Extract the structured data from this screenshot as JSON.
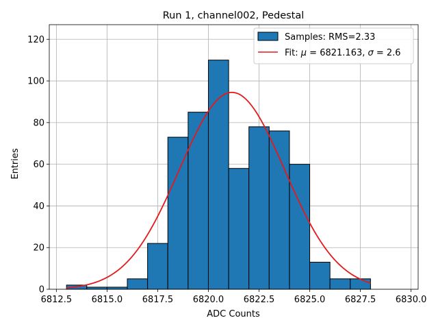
{
  "chart_data": {
    "type": "histogram",
    "title": "Run 1, channel002, Pedestal",
    "xlabel": "ADC Counts",
    "ylabel": "Entries",
    "xlim": [
      6812.15,
      6830.35
    ],
    "ylim": [
      0,
      127
    ],
    "x_ticks": [
      6812.5,
      6815.0,
      6817.5,
      6820.0,
      6822.5,
      6825.0,
      6827.5,
      6830.0
    ],
    "x_tick_labels": [
      "6812.5",
      "6815.0",
      "6817.5",
      "6820.0",
      "6822.5",
      "6825.0",
      "6827.5",
      "6830.0"
    ],
    "y_ticks": [
      0,
      20,
      40,
      60,
      80,
      100,
      120
    ],
    "y_tick_labels": [
      "0",
      "20",
      "40",
      "60",
      "80",
      "100",
      "120"
    ],
    "grid": true,
    "bars": {
      "bin_edges": [
        6813,
        6814,
        6815,
        6816,
        6817,
        6818,
        6819,
        6820,
        6821,
        6822,
        6823,
        6824,
        6825,
        6826,
        6827,
        6828
      ],
      "counts": [
        2,
        1,
        1,
        5,
        22,
        73,
        85,
        110,
        58,
        78,
        76,
        60,
        13,
        5,
        5
      ],
      "color": "#1f77b4",
      "edgecolor": "#000000"
    },
    "fit": {
      "mu": 6821.163,
      "sigma": 2.6,
      "amplitude": 94.5,
      "x_range": [
        6813,
        6828
      ],
      "color": "#e31a1c"
    },
    "legend": {
      "position": "top-right",
      "entries": [
        {
          "label": "Samples: RMS=2.33",
          "kind": "patch"
        },
        {
          "label_prefix": "Fit: ",
          "mu_symbol": "μ",
          "mu_text": " = 6821.163, ",
          "sigma_symbol": "σ",
          "sigma_text": " = 2.6",
          "kind": "line"
        }
      ]
    }
  }
}
